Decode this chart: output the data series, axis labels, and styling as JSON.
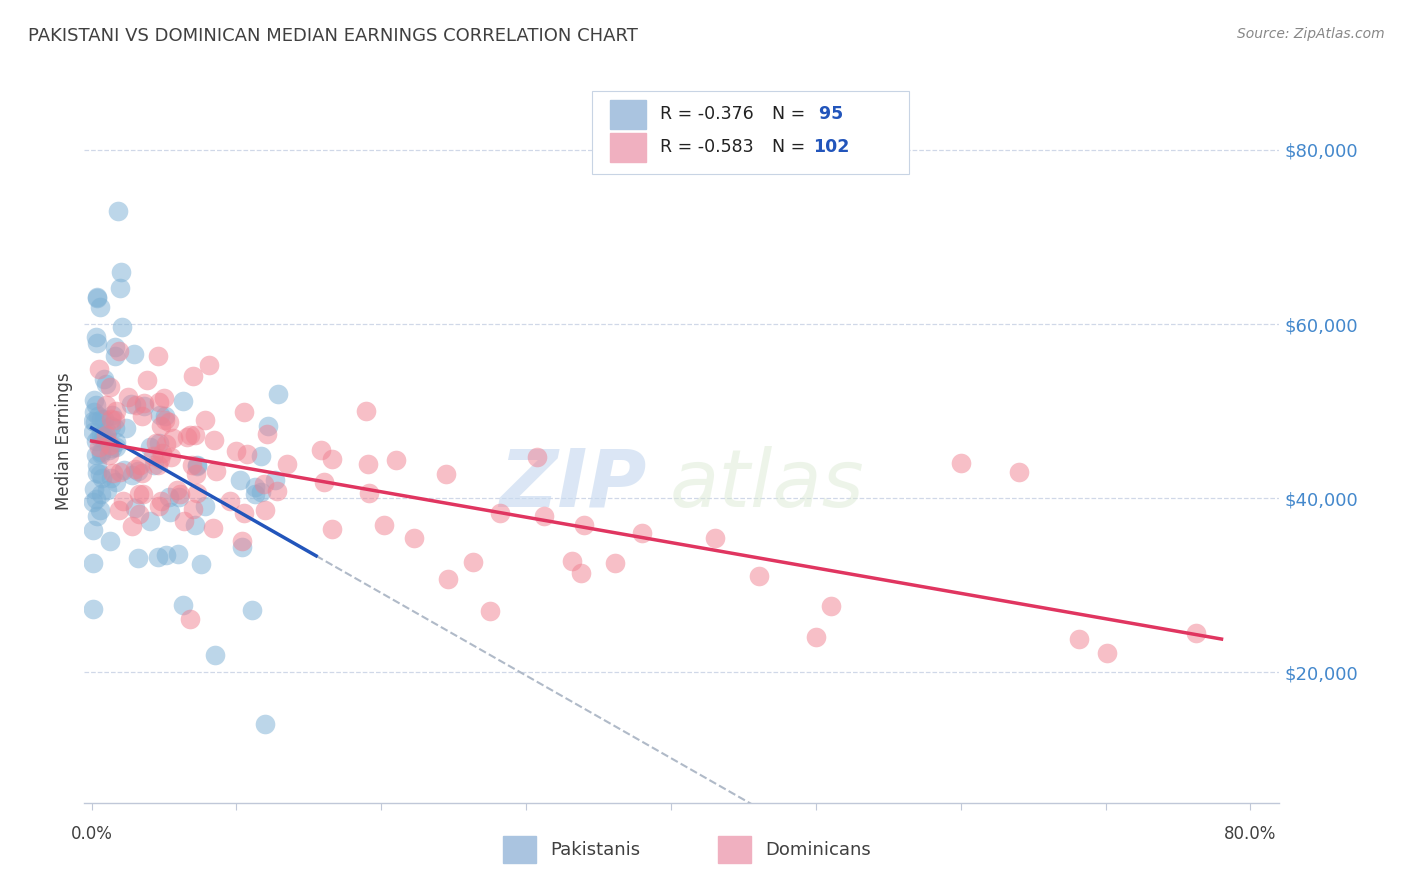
{
  "title": "PAKISTANI VS DOMINICAN MEDIAN EARNINGS CORRELATION CHART",
  "source": "Source: ZipAtlas.com",
  "ylabel": "Median Earnings",
  "ytick_labels": [
    "$20,000",
    "$40,000",
    "$60,000",
    "$80,000"
  ],
  "ytick_values": [
    20000,
    40000,
    60000,
    80000
  ],
  "ylim": [
    5000,
    88000
  ],
  "xlim": [
    -0.005,
    0.82
  ],
  "watermark_text": "ZIP",
  "watermark_text2": "atlas",
  "pakistani_color": "#7bafd4",
  "dominican_color": "#f08090",
  "pakistani_line_color": "#2255bb",
  "dominican_line_color": "#e03560",
  "dashed_line_color": "#b0bac8",
  "background_color": "#ffffff",
  "grid_color": "#d0d8e8",
  "title_color": "#404040",
  "axis_label_color": "#404040",
  "ytick_color": "#4488cc",
  "source_color": "#888888",
  "legend_text_color": "#2255bb",
  "legend_box_color": "#e8eef4",
  "bottom_legend_color": "#404040",
  "legend_r_values": [
    "R = -0.376",
    "R = -0.583"
  ],
  "legend_n_values": [
    "N =  95",
    "N = 102"
  ],
  "legend_patch_colors": [
    "#aac4e0",
    "#f0b0c0"
  ],
  "bottom_legend_labels": [
    "Pakistanis",
    "Dominicans"
  ],
  "bottom_legend_patch_colors": [
    "#aac4e0",
    "#f0b0c0"
  ]
}
